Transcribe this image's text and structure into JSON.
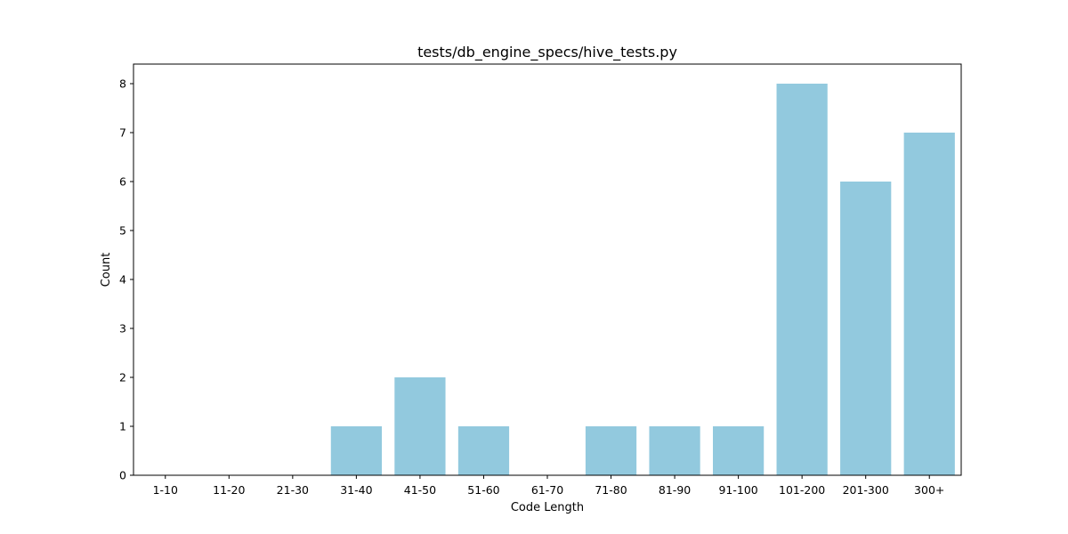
{
  "chart_data": {
    "type": "bar",
    "title": "tests/db_engine_specs/hive_tests.py",
    "xlabel": "Code Length",
    "ylabel": "Count",
    "categories": [
      "1-10",
      "11-20",
      "21-30",
      "31-40",
      "41-50",
      "51-60",
      "61-70",
      "71-80",
      "81-90",
      "91-100",
      "101-200",
      "201-300",
      "300+"
    ],
    "values": [
      0,
      0,
      0,
      1,
      2,
      1,
      0,
      1,
      1,
      1,
      8,
      6,
      7
    ],
    "ylim": [
      0,
      8.4
    ],
    "yticks": [
      0,
      1,
      2,
      3,
      4,
      5,
      6,
      7,
      8
    ],
    "grid": false,
    "legend": "none",
    "bar_color": "#92c9de",
    "axis_color": "#000000"
  }
}
